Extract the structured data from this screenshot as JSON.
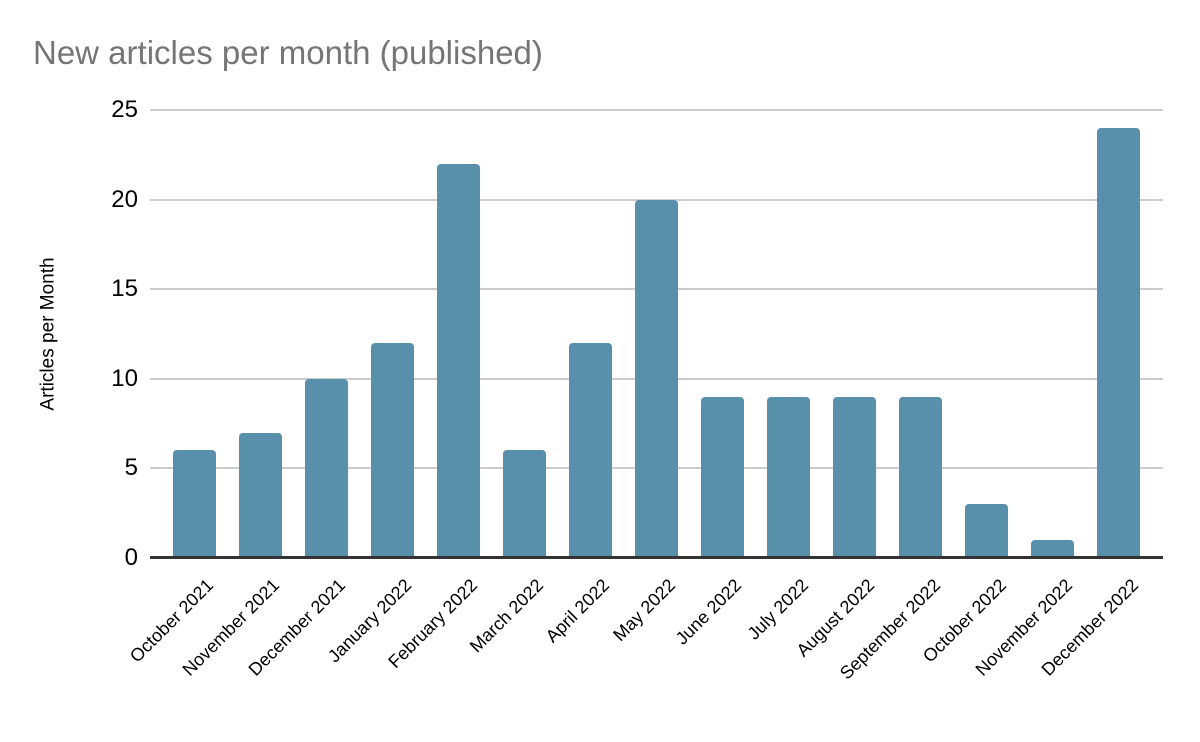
{
  "colors": {
    "bar": "#5890AC",
    "gridline": "#CCCCCC",
    "axis_line": "#333333",
    "title_text": "#757575",
    "axis_text": "#000000",
    "background": "#FFFFFF"
  },
  "chart_data": {
    "type": "bar",
    "title": "New articles per month (published)",
    "ylabel": "Articles per Month",
    "categories": [
      "October 2021",
      "November 2021",
      "December 2021",
      "January 2022",
      "February 2022",
      "March 2022",
      "April 2022",
      "May 2022",
      "June 2022",
      "July 2022",
      "August 2022",
      "September 2022",
      "October 2022",
      "November 2022",
      "December 2022"
    ],
    "values": [
      6,
      7,
      10,
      12,
      22,
      6,
      12,
      20,
      9,
      9,
      9,
      9,
      3,
      1,
      24
    ],
    "ylim": [
      0,
      25
    ],
    "yticks": [
      0,
      5,
      10,
      15,
      20,
      25
    ],
    "grid": true,
    "legend": "none"
  }
}
